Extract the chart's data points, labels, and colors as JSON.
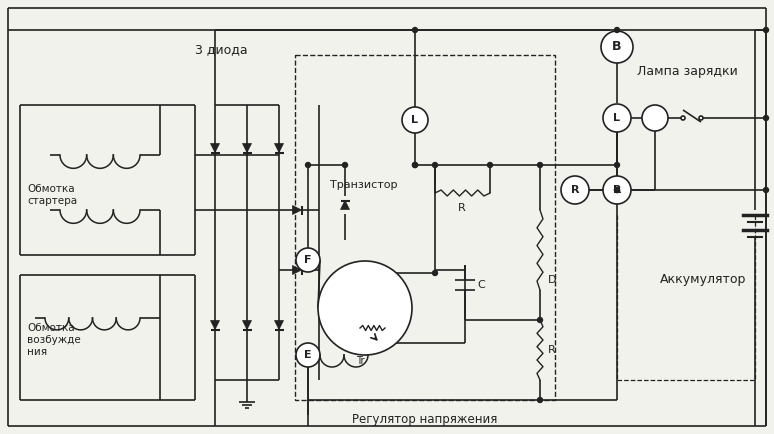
{
  "bg_color": "#f2f2ed",
  "lc": "#222222",
  "labels": {
    "3_dioda": "3 диода",
    "obmotka_startera": "Обмотка\nстартера",
    "obmotka_vozb": "Обмотка\nвозбужде\nния",
    "tranzistor": "Транзистор",
    "regulator": "Регулятор напряжения",
    "lampa_zar": "Лампа зарядки",
    "akkumul": "Аккумулятор"
  },
  "figsize": [
    7.74,
    4.34
  ],
  "dpi": 100
}
